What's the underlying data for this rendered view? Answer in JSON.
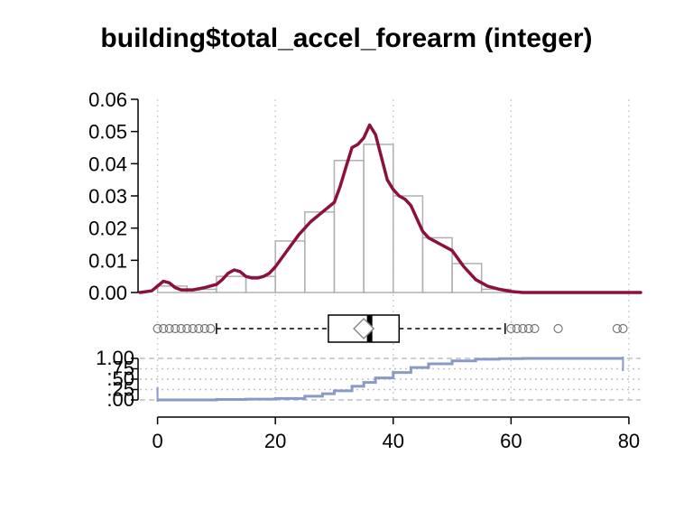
{
  "chart_data": {
    "type": "histogram",
    "title": "building$total_accel_forearm (integer)",
    "xlabel": "",
    "ylabel": "",
    "xlim": [
      -3,
      82
    ],
    "x_ticks": [
      0,
      20,
      40,
      60,
      80
    ],
    "x_tick_labels": [
      "0",
      "20",
      "40",
      "60",
      "80"
    ],
    "density_ylim": [
      0,
      0.06
    ],
    "density_ticks": [
      0,
      0.01,
      0.02,
      0.03,
      0.04,
      0.05,
      0.06
    ],
    "density_tick_labels": [
      "0.00",
      "0.01",
      "0.02",
      "0.03",
      "0.04",
      "0.05",
      "0.06"
    ],
    "histogram": {
      "bin_width": 5,
      "bins": [
        {
          "start": 0,
          "end": 5,
          "density": 0.002
        },
        {
          "start": 5,
          "end": 10,
          "density": 0.001
        },
        {
          "start": 10,
          "end": 15,
          "density": 0.005
        },
        {
          "start": 15,
          "end": 20,
          "density": 0.005
        },
        {
          "start": 20,
          "end": 25,
          "density": 0.016
        },
        {
          "start": 25,
          "end": 30,
          "density": 0.025
        },
        {
          "start": 30,
          "end": 35,
          "density": 0.041
        },
        {
          "start": 35,
          "end": 40,
          "density": 0.046
        },
        {
          "start": 40,
          "end": 45,
          "density": 0.03
        },
        {
          "start": 45,
          "end": 50,
          "density": 0.017
        },
        {
          "start": 50,
          "end": 55,
          "density": 0.009
        },
        {
          "start": 55,
          "end": 60,
          "density": 0.001
        }
      ],
      "color": "#b0b0b0"
    },
    "density_curve": {
      "color": "#8b1040",
      "points": [
        [
          -3,
          0
        ],
        [
          -1,
          0.0005
        ],
        [
          0,
          0.002
        ],
        [
          1,
          0.0035
        ],
        [
          2,
          0.003
        ],
        [
          3,
          0.0015
        ],
        [
          4,
          0.0008
        ],
        [
          6,
          0.0008
        ],
        [
          8,
          0.0015
        ],
        [
          10,
          0.0025
        ],
        [
          11,
          0.004
        ],
        [
          12,
          0.006
        ],
        [
          13,
          0.007
        ],
        [
          14,
          0.0065
        ],
        [
          15,
          0.005
        ],
        [
          16,
          0.0045
        ],
        [
          17,
          0.0045
        ],
        [
          18,
          0.005
        ],
        [
          19,
          0.006
        ],
        [
          20,
          0.008
        ],
        [
          22,
          0.013
        ],
        [
          24,
          0.018
        ],
        [
          26,
          0.022
        ],
        [
          28,
          0.025
        ],
        [
          30,
          0.028
        ],
        [
          31,
          0.033
        ],
        [
          32,
          0.039
        ],
        [
          33,
          0.045
        ],
        [
          34,
          0.046
        ],
        [
          35,
          0.048
        ],
        [
          36,
          0.052
        ],
        [
          37,
          0.049
        ],
        [
          38,
          0.042
        ],
        [
          39,
          0.035
        ],
        [
          40,
          0.032
        ],
        [
          41,
          0.03
        ],
        [
          42,
          0.029
        ],
        [
          43,
          0.027
        ],
        [
          44,
          0.023
        ],
        [
          45,
          0.019
        ],
        [
          46,
          0.017
        ],
        [
          48,
          0.015
        ],
        [
          50,
          0.013
        ],
        [
          52,
          0.008
        ],
        [
          54,
          0.004
        ],
        [
          56,
          0.002
        ],
        [
          58,
          0.001
        ],
        [
          60,
          0.0003
        ],
        [
          62,
          0
        ],
        [
          82,
          0
        ]
      ]
    },
    "boxplot": {
      "min_whisker": 10,
      "q1": 29,
      "median": 36,
      "mean": 35,
      "q3": 41,
      "max_whisker": 59,
      "outliers": [
        0,
        1,
        2,
        3,
        4,
        5,
        6,
        7,
        8,
        9,
        60,
        61,
        62,
        63,
        64,
        68,
        78,
        79
      ]
    },
    "ecdf": {
      "color": "#8a9ac8",
      "ylim": [
        0,
        1
      ],
      "ticks": [
        0,
        0.25,
        0.5,
        0.75,
        1
      ],
      "tick_labels": [
        ".00",
        ".25",
        ".50",
        ".75",
        "1.00"
      ],
      "points": [
        [
          0,
          0.0
        ],
        [
          10,
          0.01
        ],
        [
          15,
          0.02
        ],
        [
          20,
          0.035
        ],
        [
          25,
          0.09
        ],
        [
          28,
          0.15
        ],
        [
          30,
          0.22
        ],
        [
          33,
          0.33
        ],
        [
          35,
          0.42
        ],
        [
          37,
          0.53
        ],
        [
          40,
          0.66
        ],
        [
          43,
          0.78
        ],
        [
          46,
          0.87
        ],
        [
          50,
          0.94
        ],
        [
          54,
          0.98
        ],
        [
          58,
          0.995
        ],
        [
          62,
          1.0
        ],
        [
          79,
          1.0
        ]
      ]
    }
  }
}
